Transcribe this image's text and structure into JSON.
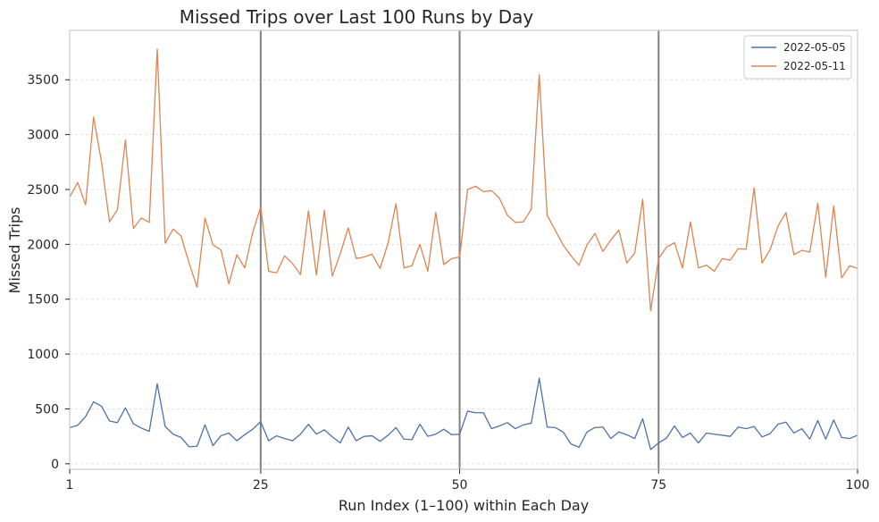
{
  "chart_data": {
    "type": "line",
    "title": "Missed Trips over Last 100 Runs by Day",
    "xlabel": "Run Index (1–100) within Each Day",
    "ylabel": "Missed Trips",
    "xlim": [
      1,
      100
    ],
    "ylim": [
      -50,
      3950
    ],
    "xticks": [
      1,
      25,
      50,
      75,
      100
    ],
    "yticks": [
      0,
      500,
      1000,
      1500,
      2000,
      2500,
      3000,
      3500
    ],
    "vlines": [
      25,
      50,
      75
    ],
    "grid": "horizontal dashed",
    "legend_position": "top-right",
    "colors": {
      "series_1": "#4c72b0",
      "series_2": "#dd8452",
      "vline": "#808080",
      "axes": "#cccccc"
    },
    "x": [
      1,
      2,
      3,
      4,
      5,
      6,
      7,
      8,
      9,
      10,
      11,
      12,
      13,
      14,
      15,
      16,
      17,
      18,
      19,
      20,
      21,
      22,
      23,
      24,
      25,
      26,
      27,
      28,
      29,
      30,
      31,
      32,
      33,
      34,
      35,
      36,
      37,
      38,
      39,
      40,
      41,
      42,
      43,
      44,
      45,
      46,
      47,
      48,
      49,
      50,
      51,
      52,
      53,
      54,
      55,
      56,
      57,
      58,
      59,
      60,
      61,
      62,
      63,
      64,
      65,
      66,
      67,
      68,
      69,
      70,
      71,
      72,
      73,
      74,
      75,
      76,
      77,
      78,
      79,
      80,
      81,
      82,
      83,
      84,
      85,
      86,
      87,
      88,
      89,
      90,
      91,
      92,
      93,
      94,
      95,
      96,
      97,
      98,
      99,
      100
    ],
    "series": [
      {
        "name": "2022-05-05",
        "color": "#4c72b0",
        "values": [
          330,
          350,
          430,
          565,
          525,
          390,
          375,
          510,
          365,
          325,
          295,
          730,
          340,
          270,
          240,
          155,
          160,
          355,
          165,
          255,
          280,
          210,
          265,
          315,
          385,
          210,
          255,
          230,
          210,
          270,
          360,
          270,
          310,
          245,
          190,
          335,
          210,
          250,
          255,
          205,
          260,
          330,
          225,
          220,
          360,
          250,
          270,
          315,
          265,
          270,
          480,
          465,
          465,
          320,
          345,
          375,
          320,
          355,
          370,
          780,
          335,
          330,
          290,
          180,
          150,
          290,
          330,
          335,
          230,
          290,
          265,
          230,
          410,
          130,
          190,
          235,
          345,
          240,
          280,
          190,
          280,
          270,
          260,
          250,
          335,
          320,
          340,
          245,
          275,
          360,
          380,
          280,
          320,
          225,
          395,
          225,
          400,
          240,
          230,
          260
        ]
      },
      {
        "name": "2022-05-11",
        "color": "#dd8452",
        "values": [
          2430,
          2565,
          2360,
          3160,
          2750,
          2205,
          2315,
          2950,
          2145,
          2240,
          2200,
          3780,
          2010,
          2140,
          2075,
          1830,
          1610,
          2240,
          1995,
          1950,
          1640,
          1905,
          1785,
          2110,
          2340,
          1755,
          1740,
          1895,
          1825,
          1725,
          2305,
          1720,
          2310,
          1710,
          1915,
          2150,
          1870,
          1885,
          1910,
          1780,
          2010,
          2370,
          1785,
          1805,
          2000,
          1755,
          2290,
          1815,
          1870,
          1885,
          2500,
          2530,
          2480,
          2490,
          2420,
          2265,
          2200,
          2205,
          2320,
          3545,
          2265,
          2130,
          1995,
          1895,
          1810,
          1995,
          2100,
          1935,
          2040,
          2130,
          1830,
          1920,
          2410,
          1395,
          1870,
          1975,
          2015,
          1785,
          2205,
          1785,
          1810,
          1755,
          1870,
          1855,
          1960,
          1955,
          2515,
          1830,
          1950,
          2165,
          2290,
          1905,
          1945,
          1930,
          2375,
          1700,
          2350,
          1695,
          1805,
          1780
        ]
      }
    ]
  }
}
